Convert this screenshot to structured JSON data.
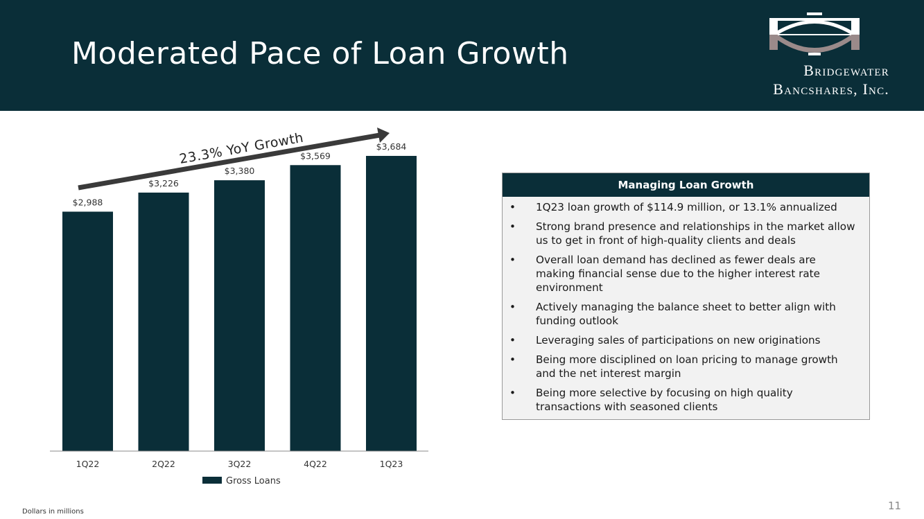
{
  "slide": {
    "title": "Moderated Pace of Loan Growth",
    "page_number": "11",
    "footnote": "Dollars in millions"
  },
  "logo": {
    "line1": "Bridgewater",
    "line2": "Bancshares, Inc.",
    "icon": "bridge-arch-logo-icon"
  },
  "colors": {
    "header_bg": "#0a2e38",
    "bar": "#0a2e38",
    "panel_bg": "#f2f2f2",
    "logo_accent": "#9a8a8a"
  },
  "chart_data": {
    "type": "bar",
    "categories": [
      "1Q22",
      "2Q22",
      "3Q22",
      "4Q22",
      "1Q23"
    ],
    "series": [
      {
        "name": "Gross Loans",
        "values": [
          2988,
          3226,
          3380,
          3569,
          3684
        ],
        "labels": [
          "$2,988",
          "$3,226",
          "$3,380",
          "$3,569",
          "$3,684"
        ]
      }
    ],
    "ylim": [
      0,
      3900
    ],
    "grid": false,
    "legend": "bottom",
    "annotation": "23.3% YoY Growth"
  },
  "panel": {
    "header": "Managing Loan Growth",
    "bullet": "•",
    "items": [
      "1Q23 loan growth of $114.9 million, or 13.1% annualized",
      "Strong brand presence and relationships in the market allow us to get in front of high-quality clients and deals",
      "Overall loan demand has declined as fewer deals are making financial sense due to the higher interest rate environment",
      "Actively managing the balance sheet to better align with funding outlook",
      "Leveraging sales of participations on new originations",
      "Being more disciplined on loan pricing to manage growth and the net interest margin",
      "Being more selective by focusing on high quality transactions with seasoned clients"
    ]
  }
}
